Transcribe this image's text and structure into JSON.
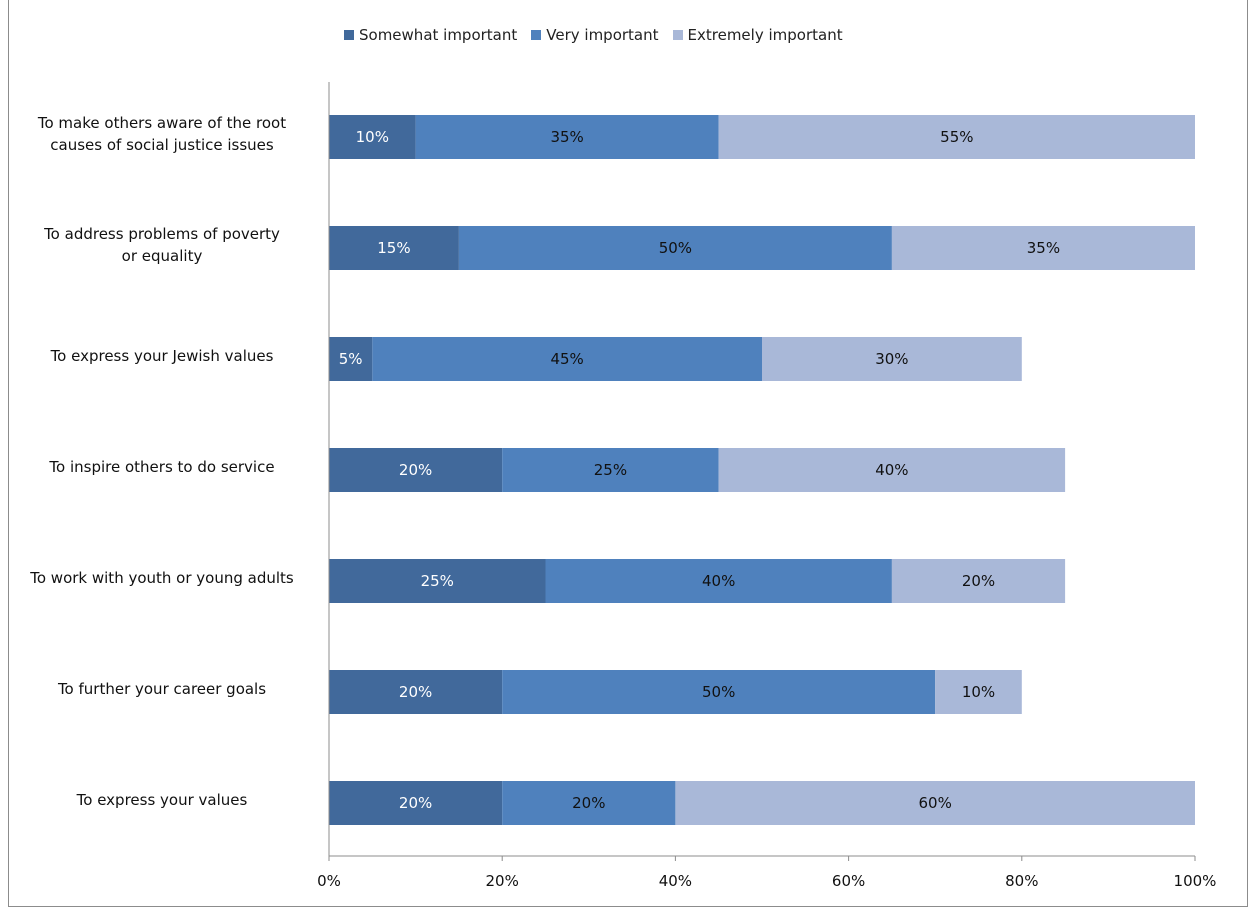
{
  "chart_data": {
    "type": "bar",
    "orientation": "horizontal",
    "stacked": true,
    "categories": [
      "To make others aware of the root causes of social justice issues",
      "To address problems of poverty or equality",
      "To express your Jewish values",
      "To inspire others to do service",
      "To work with youth or young adults",
      "To further your career goals",
      "To express your values"
    ],
    "category_lines": [
      [
        "To make others aware of the root",
        "causes of social justice issues"
      ],
      [
        "To address problems of poverty",
        "or equality"
      ],
      [
        "To express your Jewish values"
      ],
      [
        "To inspire others to do service"
      ],
      [
        "To work with youth or young adults"
      ],
      [
        "To further your career goals"
      ],
      [
        "To express your values"
      ]
    ],
    "series": [
      {
        "name": "Somewhat important",
        "color": "#41699b",
        "label_color": "#ffffff",
        "values": [
          10,
          15,
          5,
          20,
          25,
          20,
          20
        ]
      },
      {
        "name": "Very important",
        "color": "#4f81bd",
        "label_color": "#111111",
        "values": [
          35,
          50,
          45,
          25,
          40,
          50,
          20
        ]
      },
      {
        "name": "Extremely important",
        "color": "#a9b8d8",
        "label_color": "#111111",
        "values": [
          55,
          35,
          30,
          40,
          20,
          10,
          60
        ]
      }
    ],
    "data_labels": [
      [
        "10%",
        "15%",
        "5%",
        "20%",
        "25%",
        "20%",
        "20%"
      ],
      [
        "35%",
        "50%",
        "45%",
        "25%",
        "40%",
        "50%",
        "20%"
      ],
      [
        "55%",
        "35%",
        "30%",
        "40%",
        "20%",
        "10%",
        "60%"
      ]
    ],
    "xlim": [
      0,
      100
    ],
    "xticks": [
      0,
      20,
      40,
      60,
      80,
      100
    ],
    "xtick_labels": [
      "0%",
      "20%",
      "40%",
      "60%",
      "80%",
      "100%"
    ],
    "legend_position": "top",
    "grid": false,
    "title": "",
    "xlabel": "",
    "ylabel": ""
  }
}
